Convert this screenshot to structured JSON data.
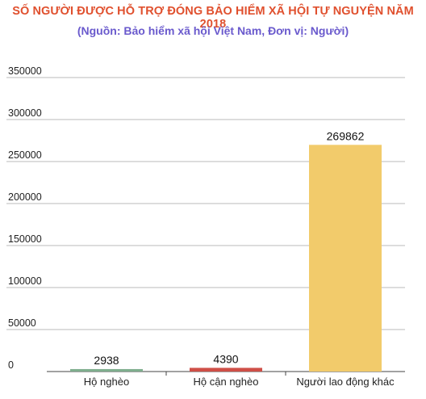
{
  "colors": {
    "title": "#e0502e",
    "subtitle": "#6a5acd",
    "grid": "#bbbbbb",
    "axis": "#444444"
  },
  "chart_data": {
    "type": "bar",
    "title": "SỐ NGƯỜI ĐƯỢC HỖ TRỢ ĐÓNG BẢO HIỂM XÃ HỘI TỰ NGUYỆN NĂM 2018",
    "subtitle": "(Nguồn:  Bảo hiểm xã hội Việt Nam, Đơn vị: Người)",
    "categories": [
      "Hộ nghèo",
      "Hộ cận nghèo",
      "Người lao động khác"
    ],
    "values": [
      2938,
      4390,
      269862
    ],
    "value_labels": [
      "2938",
      "4390",
      "269862"
    ],
    "bar_colors": [
      "#7fae8e",
      "#cf4f47",
      "#f2cb6b"
    ],
    "yticks": [
      0,
      50000,
      100000,
      150000,
      200000,
      250000,
      300000,
      350000
    ],
    "ytick_labels": [
      "0",
      "50000",
      "100000",
      "150000",
      "200000",
      "250000",
      "300000",
      "350000"
    ],
    "ylim": [
      0,
      350000
    ],
    "grid": true,
    "xlabel": "",
    "ylabel": ""
  }
}
